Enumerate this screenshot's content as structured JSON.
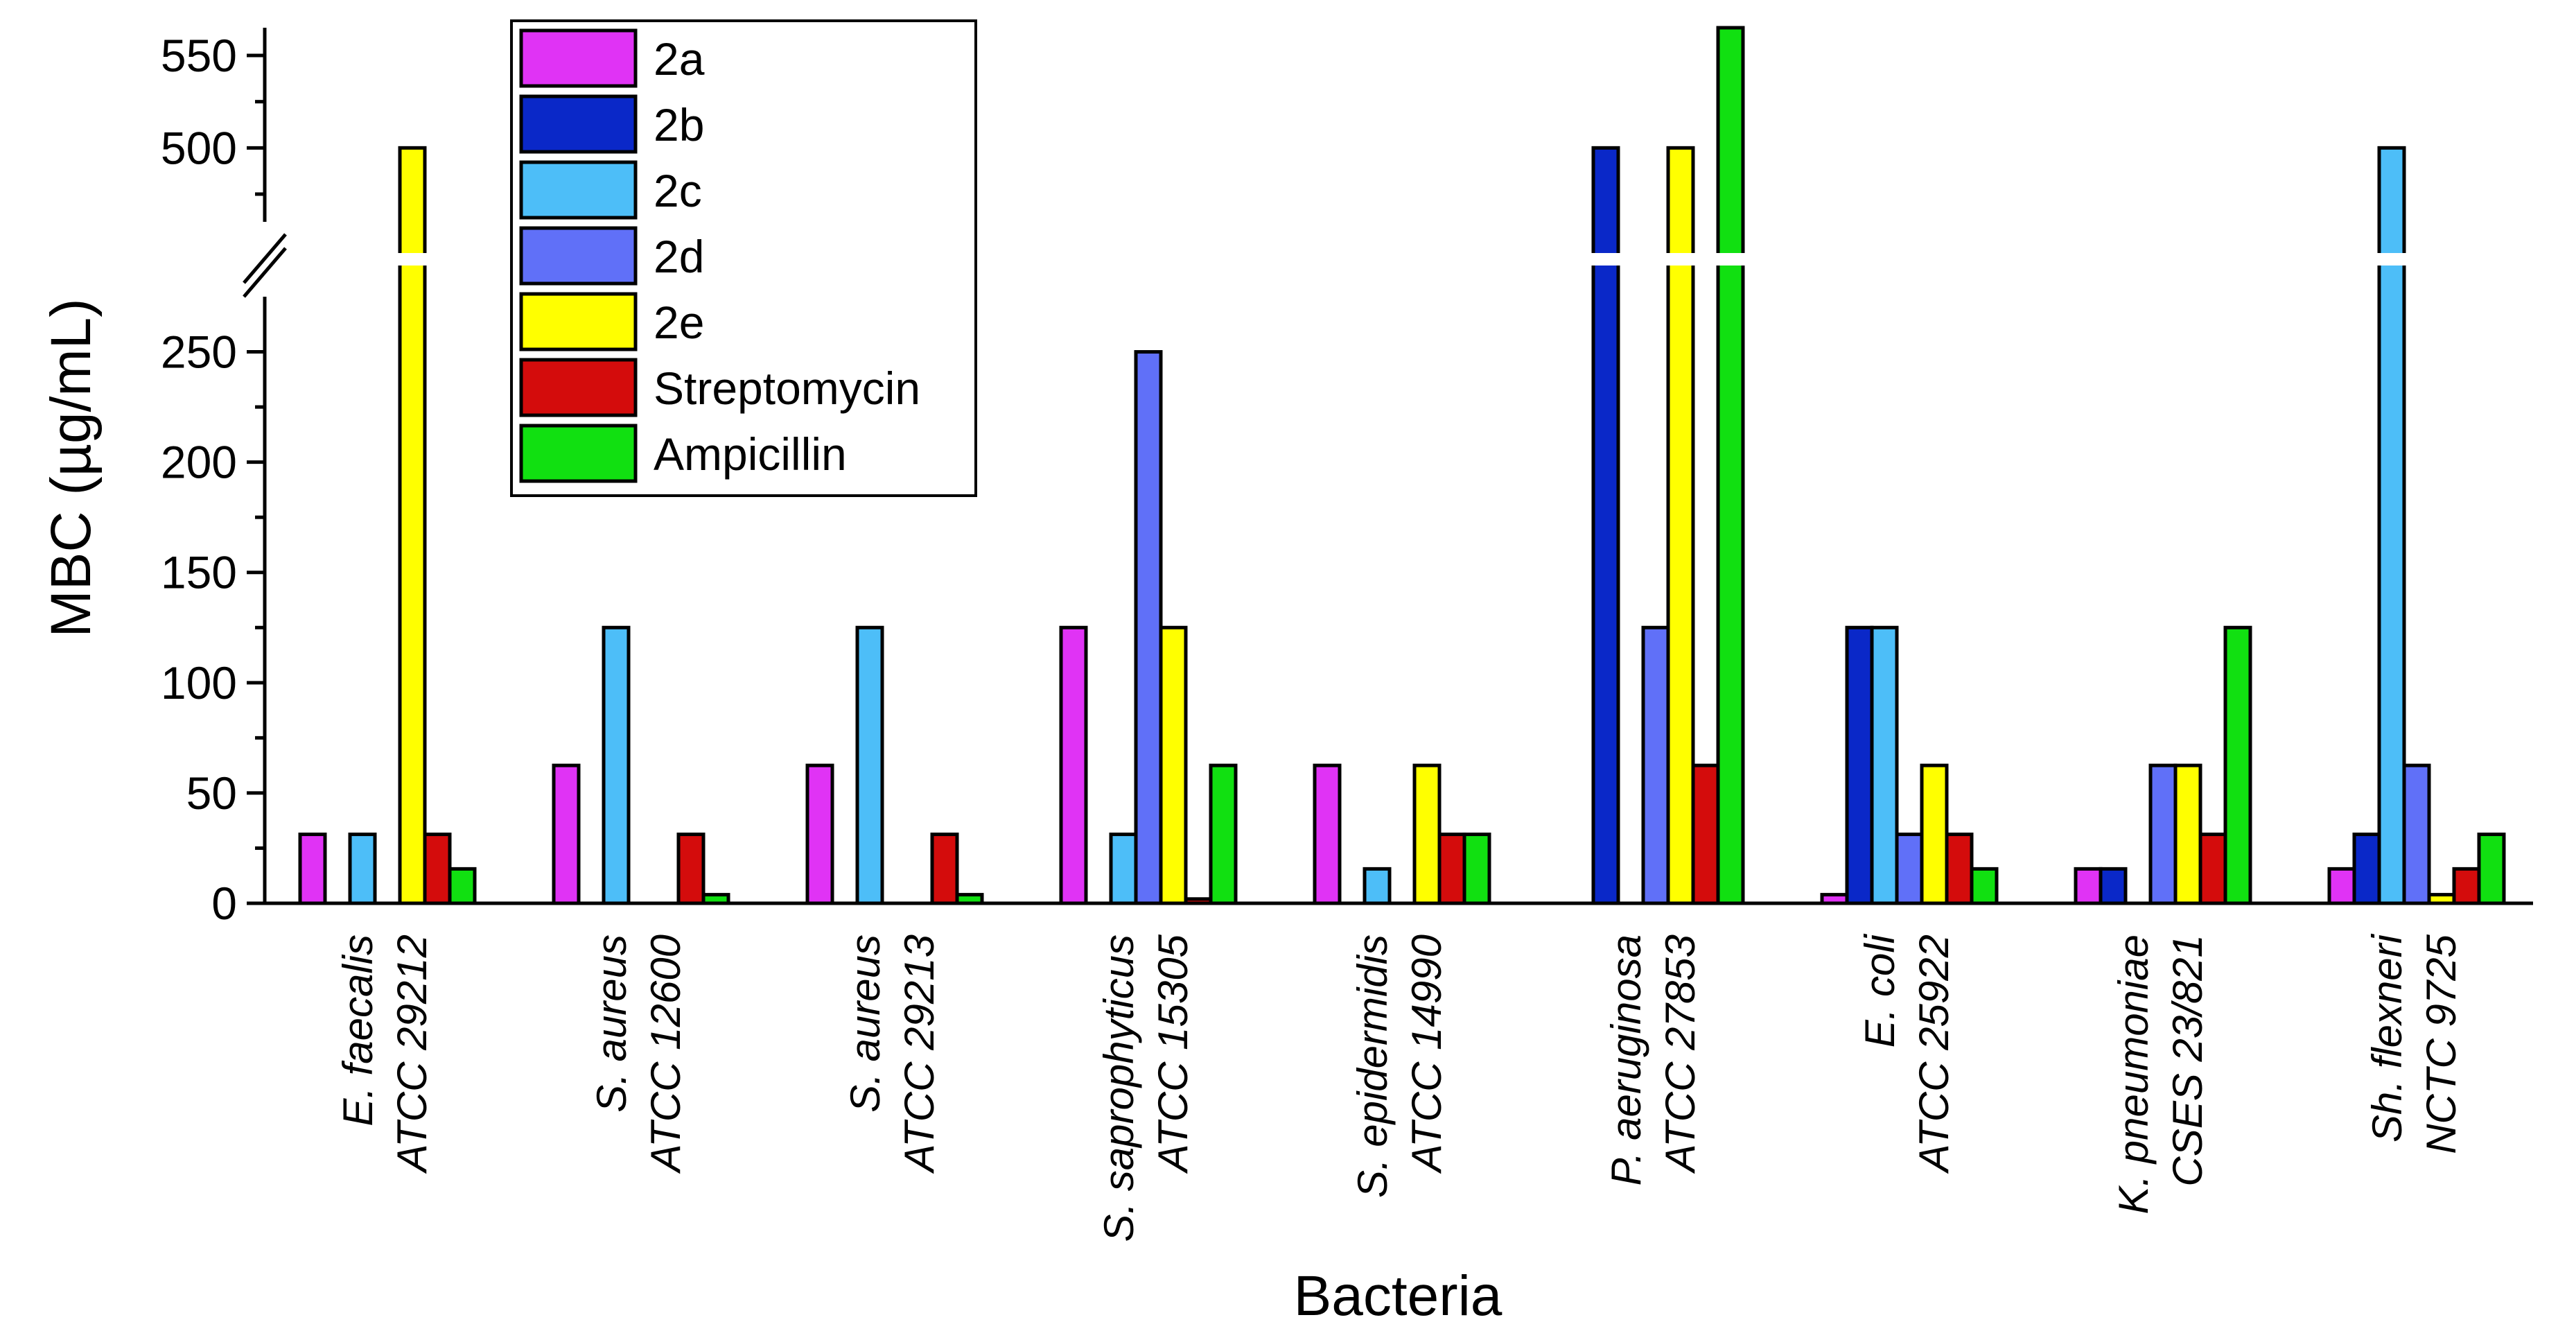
{
  "chart_data": {
    "type": "bar",
    "title": "",
    "xlabel": "Bacteria",
    "ylabel": "MBC (µg/mL)",
    "y_break": {
      "lower_range": [
        0,
        275
      ],
      "upper_range": [
        460,
        565
      ]
    },
    "lower_ticks": [
      "0",
      "50",
      "100",
      "150",
      "200",
      "250"
    ],
    "upper_ticks": [
      "500",
      "550"
    ],
    "legend_position": "top-left",
    "categories": [
      {
        "species": "E. faecalis",
        "strain": "ATCC 29212"
      },
      {
        "species": "S. aureus",
        "strain": "ATCC 12600"
      },
      {
        "species": "S. aureus",
        "strain": "ATCC 29213"
      },
      {
        "species": "S. saprophyticus",
        "strain": "ATCC 15305"
      },
      {
        "species": "S. epidermidis",
        "strain": "ATCC 14990"
      },
      {
        "species": "P. aeruginosa",
        "strain": "ATCC 27853"
      },
      {
        "species": "E. coli",
        "strain": "ATCC 25922"
      },
      {
        "species": "K. pneumoniae",
        "strain": "CSES 23/821"
      },
      {
        "species": "Sh. flexneri",
        "strain": "NCTC 9725"
      }
    ],
    "series": [
      {
        "name": "2a",
        "color": "#e033f5",
        "values": [
          31.25,
          62.5,
          62.5,
          125,
          62.5,
          0,
          3.9,
          15.6,
          15.6
        ]
      },
      {
        "name": "2b",
        "color": "#0a28c8",
        "values": [
          0,
          0,
          0,
          0,
          0,
          500,
          125,
          15.6,
          31.25
        ]
      },
      {
        "name": "2c",
        "color": "#4dbef8",
        "values": [
          31.25,
          125,
          125,
          31.25,
          15.6,
          0,
          125,
          0,
          500
        ]
      },
      {
        "name": "2d",
        "color": "#6070f8",
        "values": [
          0,
          0,
          0,
          250,
          0,
          125,
          31.25,
          62.5,
          62.5
        ]
      },
      {
        "name": "2e",
        "color": "#ffff00",
        "values": [
          500,
          0,
          0,
          125,
          62.5,
          500,
          62.5,
          62.5,
          3.9
        ]
      },
      {
        "name": "Streptomycin",
        "color": "#d40c0c",
        "values": [
          31.25,
          31.25,
          31.25,
          1.95,
          31.25,
          62.5,
          31.25,
          31.25,
          15.6
        ]
      },
      {
        "name": "Ampicillin",
        "color": "#11e011",
        "values": [
          15.6,
          3.9,
          3.9,
          62.5,
          31.25,
          565,
          15.6,
          125,
          31.25
        ]
      }
    ]
  }
}
